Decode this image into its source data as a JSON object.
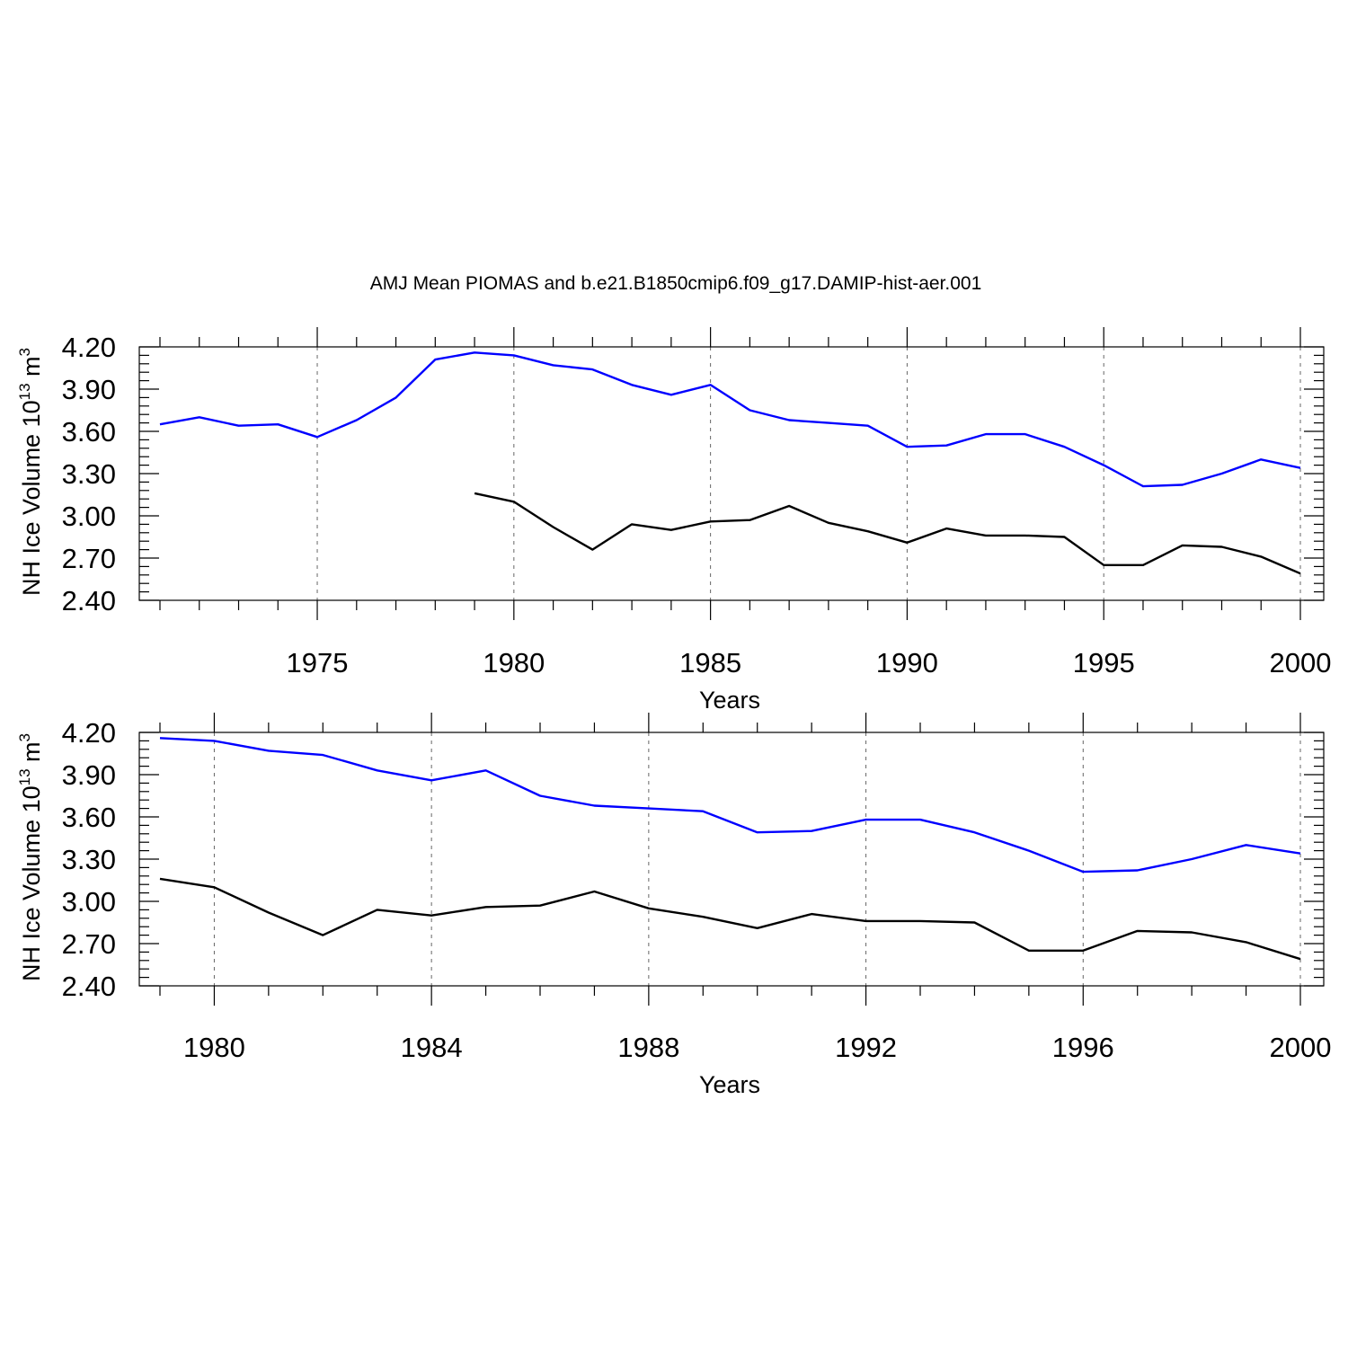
{
  "figure_title": "AMJ Mean PIOMAS and b.e21.B1850cmip6.f09_g17.DAMIP-hist-aer.001",
  "colors": {
    "model": "#0000ff",
    "piomas": "#000000"
  },
  "chart_data": [
    {
      "type": "line",
      "xlabel": "Years",
      "ylabel": "NH Ice Volume 10",
      "ylabel_sup1": "13",
      "ylabel_unit": " m",
      "ylabel_sup2": "3",
      "xlim": [
        1971,
        2000
      ],
      "ylim": [
        2.4,
        4.2
      ],
      "xticks_major": [
        1975,
        1980,
        1985,
        1990,
        1995,
        2000
      ],
      "xticks_major_labels": [
        "1975",
        "1980",
        "1985",
        "1990",
        "1995",
        "2000"
      ],
      "yticks": [
        2.4,
        2.7,
        3.0,
        3.3,
        3.6,
        3.9,
        4.2
      ],
      "ytick_labels": [
        "2.40",
        "2.70",
        "3.00",
        "3.30",
        "3.60",
        "3.90",
        "4.20"
      ],
      "grid": "vertical dashed at major x ticks",
      "series": [
        {
          "color": "#0000ff",
          "x": [
            1971,
            1972,
            1973,
            1974,
            1975,
            1976,
            1977,
            1978,
            1979,
            1980,
            1981,
            1982,
            1983,
            1984,
            1985,
            1986,
            1987,
            1988,
            1989,
            1990,
            1991,
            1992,
            1993,
            1994,
            1995,
            1996,
            1997,
            1998,
            1999,
            2000
          ],
          "y": [
            3.65,
            3.7,
            3.64,
            3.65,
            3.56,
            3.68,
            3.84,
            4.11,
            4.16,
            4.14,
            4.07,
            4.04,
            3.93,
            3.86,
            3.93,
            3.75,
            3.68,
            3.66,
            3.64,
            3.49,
            3.5,
            3.58,
            3.58,
            3.49,
            3.36,
            3.21,
            3.22,
            3.3,
            3.4,
            3.34
          ]
        },
        {
          "color": "#000000",
          "x": [
            1979,
            1980,
            1981,
            1982,
            1983,
            1984,
            1985,
            1986,
            1987,
            1988,
            1989,
            1990,
            1991,
            1992,
            1993,
            1994,
            1995,
            1996,
            1997,
            1998,
            1999,
            2000
          ],
          "y": [
            3.16,
            3.1,
            2.92,
            2.76,
            2.94,
            2.9,
            2.96,
            2.97,
            3.07,
            2.95,
            2.89,
            2.81,
            2.91,
            2.86,
            2.86,
            2.85,
            2.65,
            2.65,
            2.79,
            2.78,
            2.71,
            2.59
          ]
        }
      ]
    },
    {
      "type": "line",
      "xlabel": "Years",
      "ylabel": "NH Ice Volume 10",
      "ylabel_sup1": "13",
      "ylabel_unit": " m",
      "ylabel_sup2": "3",
      "xlim": [
        1979,
        2000
      ],
      "ylim": [
        2.4,
        4.2
      ],
      "xticks_major": [
        1980,
        1984,
        1988,
        1992,
        1996,
        2000
      ],
      "xticks_major_labels": [
        "1980",
        "1984",
        "1988",
        "1992",
        "1996",
        "2000"
      ],
      "yticks": [
        2.4,
        2.7,
        3.0,
        3.3,
        3.6,
        3.9,
        4.2
      ],
      "ytick_labels": [
        "2.40",
        "2.70",
        "3.00",
        "3.30",
        "3.60",
        "3.90",
        "4.20"
      ],
      "grid": "vertical dashed at major x ticks",
      "series": [
        {
          "color": "#0000ff",
          "x": [
            1979,
            1980,
            1981,
            1982,
            1983,
            1984,
            1985,
            1986,
            1987,
            1988,
            1989,
            1990,
            1991,
            1992,
            1993,
            1994,
            1995,
            1996,
            1997,
            1998,
            1999,
            2000
          ],
          "y": [
            4.16,
            4.14,
            4.07,
            4.04,
            3.93,
            3.86,
            3.93,
            3.75,
            3.68,
            3.66,
            3.64,
            3.49,
            3.5,
            3.58,
            3.58,
            3.49,
            3.36,
            3.21,
            3.22,
            3.3,
            3.4,
            3.34
          ]
        },
        {
          "color": "#000000",
          "x": [
            1979,
            1980,
            1981,
            1982,
            1983,
            1984,
            1985,
            1986,
            1987,
            1988,
            1989,
            1990,
            1991,
            1992,
            1993,
            1994,
            1995,
            1996,
            1997,
            1998,
            1999,
            2000
          ],
          "y": [
            3.16,
            3.1,
            2.92,
            2.76,
            2.94,
            2.9,
            2.96,
            2.97,
            3.07,
            2.95,
            2.89,
            2.81,
            2.91,
            2.86,
            2.86,
            2.85,
            2.65,
            2.65,
            2.79,
            2.78,
            2.71,
            2.59
          ]
        }
      ]
    }
  ]
}
